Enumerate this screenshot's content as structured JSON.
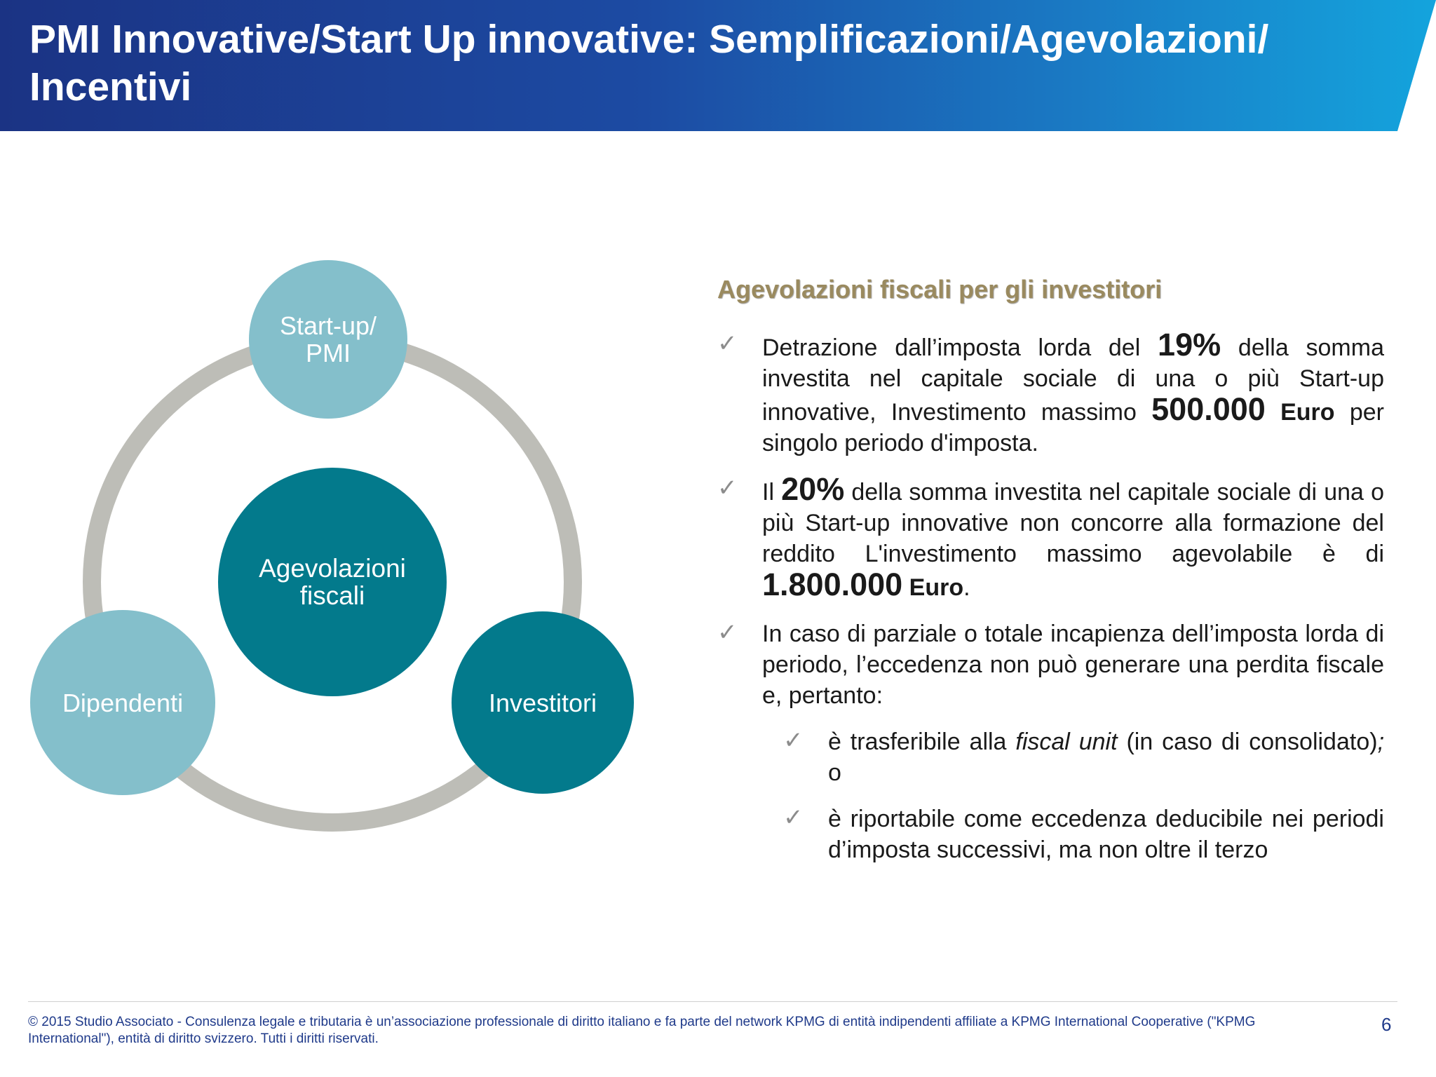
{
  "header": {
    "title_line1": "PMI Innovative/Start Up innovative: Semplificazioni/Agevolazioni/",
    "title_line2": "Incentivi"
  },
  "diagram": {
    "center": {
      "line1": "Agevolazioni",
      "line2": "fiscali"
    },
    "top": {
      "line1": "Start-up/",
      "line2": "PMI"
    },
    "left": {
      "label": "Dipendenti"
    },
    "right": {
      "label": "Investitori"
    },
    "colors": {
      "light": "#84bfcb",
      "dark": "#037a8c",
      "ring": "#bdbdb7"
    }
  },
  "section": {
    "subtitle": "Agevolazioni fiscali per gli investitori",
    "bullet1": {
      "a": "Detrazione dall’imposta lorda del ",
      "pct": "19%",
      "b": " della somma investita nel capitale sociale di una o più Start-up innovative, Investimento massimo ",
      "amount": "500.000",
      "euro": " Euro",
      "c": " per singolo periodo d'imposta."
    },
    "bullet2": {
      "a": "Il ",
      "pct": "20%",
      "b": " della somma investita nel capitale sociale di una o più Start-up innovative non concorre alla formazione del reddito L'investimento massimo agevolabile è di ",
      "amount": "1.800.000",
      "euro": " Euro",
      "c": "."
    },
    "bullet3": {
      "text": "In caso di parziale o totale incapienza dell’imposta lorda di periodo, l’eccedenza non può generare una perdita fiscale e, pertanto:"
    },
    "sub1": {
      "a": "è trasferibile alla ",
      "italic": "fiscal unit",
      "b": " (in caso di consolidato)",
      "semi": ";",
      "c": " o"
    },
    "sub2": {
      "text": "è riportabile come eccedenza deducibile nei periodi d’imposta successivi, ma non oltre il terzo"
    },
    "check_icon": "✓"
  },
  "footer": {
    "text": "© 2015 Studio Associato - Consulenza legale e tributaria è un’associazione professionale di diritto italiano e fa parte del network KPMG di entità indipendenti affiliate a KPMG International Cooperative (\"KPMG International\"), entità di diritto svizzero. Tutti i diritti riservati.",
    "page": "6"
  }
}
